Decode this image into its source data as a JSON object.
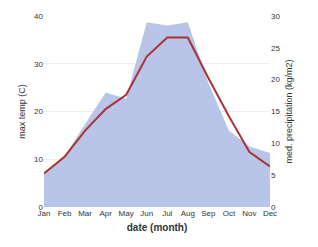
{
  "chart_data": {
    "type": "line",
    "categories": [
      "Jan",
      "Feb",
      "Mar",
      "Apr",
      "May",
      "Jun",
      "Jul",
      "Aug",
      "Sep",
      "Oct",
      "Nov",
      "Dec"
    ],
    "xlabel": "date (month)",
    "ylabel": "max temp (C)",
    "y2label": "med. precipitation (kg/m2)",
    "ylim": [
      0,
      40
    ],
    "yticks": [
      0,
      10,
      20,
      30,
      40
    ],
    "y2lim": [
      0,
      30
    ],
    "y2ticks": [
      0,
      5,
      10,
      15,
      20,
      25,
      30
    ],
    "grid": true,
    "series": [
      {
        "type": "area",
        "axis": "y2",
        "color": "#b8c4e8",
        "values": [
          5.5,
          8.0,
          13.0,
          18.0,
          17.0,
          29.0,
          28.5,
          29.0,
          19.5,
          12.0,
          9.5,
          8.5
        ]
      },
      {
        "type": "line",
        "color": "#aa3333",
        "values": [
          7.0,
          10.5,
          16.0,
          20.5,
          23.5,
          31.5,
          35.5,
          35.5,
          27.0,
          19.0,
          11.5,
          8.5
        ]
      }
    ]
  }
}
